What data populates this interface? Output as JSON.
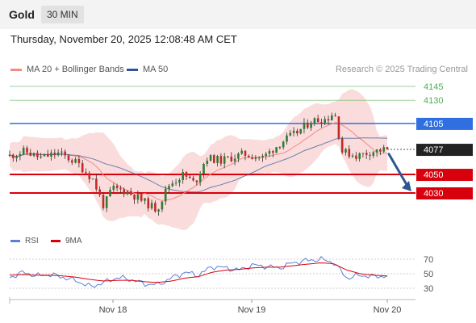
{
  "header": {
    "symbol": "Gold",
    "interval": "30 MIN"
  },
  "datetime": "Thursday, November 20, 2025 12:08:48 AM CET",
  "copyright": "Research © 2025 Trading Central",
  "legend": {
    "bb": {
      "label": "MA 20 + Bollinger Bands",
      "color": "#f28b82"
    },
    "ma50": {
      "label": "MA 50",
      "color": "#2f5597"
    }
  },
  "rsi_legend": {
    "rsi": {
      "label": "RSI",
      "color": "#5b7fd6"
    },
    "ma9": {
      "label": "9MA",
      "color": "#d9000d"
    }
  },
  "colors": {
    "up": "#2e7d32",
    "down": "#c62828",
    "band": "#f8d0d0",
    "resistance": "#d9000d",
    "support_blue": "#2f6fe0",
    "green_level": "#4caf50",
    "arrow": "#2f5597"
  },
  "chart_data": [
    {
      "type": "candlestick",
      "title": "Gold",
      "xlabel": "",
      "ylabel": "",
      "x_ticks": [
        "Nov 18",
        "Nov 19",
        "Nov 20"
      ],
      "ylim": [
        3985,
        4160
      ],
      "levels": [
        {
          "value": 4145,
          "label": "4145",
          "style": "green",
          "color": "#4caf50"
        },
        {
          "value": 4130,
          "label": "4130",
          "style": "green",
          "color": "#4caf50"
        },
        {
          "value": 4105,
          "label": "4105",
          "style": "blue",
          "color": "#2f6fe0"
        },
        {
          "value": 4050,
          "label": "4050",
          "style": "red",
          "color": "#d9000d"
        },
        {
          "value": 4030,
          "label": "4030",
          "style": "red",
          "color": "#d9000d"
        }
      ],
      "last_price": {
        "value": 4077,
        "label": "4077"
      },
      "forecast_arrow": {
        "from": 4072,
        "to": 4030,
        "direction": "down"
      },
      "key_points": [
        {
          "pos": 0.0,
          "price": 4070
        },
        {
          "pos": 0.04,
          "price": 4075
        },
        {
          "pos": 0.08,
          "price": 4068
        },
        {
          "pos": 0.13,
          "price": 4073
        },
        {
          "pos": 0.18,
          "price": 4062
        },
        {
          "pos": 0.22,
          "price": 4045
        },
        {
          "pos": 0.25,
          "price": 4015
        },
        {
          "pos": 0.27,
          "price": 4035
        },
        {
          "pos": 0.31,
          "price": 4032
        },
        {
          "pos": 0.35,
          "price": 4022
        },
        {
          "pos": 0.39,
          "price": 4012
        },
        {
          "pos": 0.42,
          "price": 4038
        },
        {
          "pos": 0.46,
          "price": 4050
        },
        {
          "pos": 0.49,
          "price": 4040
        },
        {
          "pos": 0.52,
          "price": 4068
        },
        {
          "pos": 0.56,
          "price": 4065
        },
        {
          "pos": 0.62,
          "price": 4072
        },
        {
          "pos": 0.67,
          "price": 4068
        },
        {
          "pos": 0.72,
          "price": 4085
        },
        {
          "pos": 0.76,
          "price": 4095
        },
        {
          "pos": 0.8,
          "price": 4108
        },
        {
          "pos": 0.84,
          "price": 4110
        },
        {
          "pos": 0.86,
          "price": 4118
        },
        {
          "pos": 0.88,
          "price": 4075
        },
        {
          "pos": 0.92,
          "price": 4070
        },
        {
          "pos": 0.96,
          "price": 4075
        },
        {
          "pos": 1.0,
          "price": 4077
        }
      ]
    },
    {
      "type": "line",
      "title": "RSI",
      "xlabel": "",
      "ylabel": "",
      "y_ticks": [
        70,
        50,
        30
      ],
      "ylim": [
        20,
        80
      ],
      "series": [
        {
          "name": "RSI",
          "color": "#5b7fd6",
          "values": [
            45,
            52,
            47,
            49,
            45,
            40,
            32,
            38,
            45,
            42,
            36,
            35,
            44,
            52,
            48,
            60,
            58,
            55,
            62,
            60,
            58,
            65,
            68,
            70,
            66,
            44,
            48,
            46,
            47
          ]
        },
        {
          "name": "9MA",
          "color": "#d9000d",
          "values": [
            48,
            49,
            48,
            48,
            47,
            45,
            42,
            40,
            41,
            41,
            39,
            38,
            40,
            44,
            46,
            52,
            55,
            56,
            58,
            59,
            59,
            61,
            63,
            65,
            64,
            55,
            50,
            48,
            47
          ]
        }
      ]
    }
  ]
}
